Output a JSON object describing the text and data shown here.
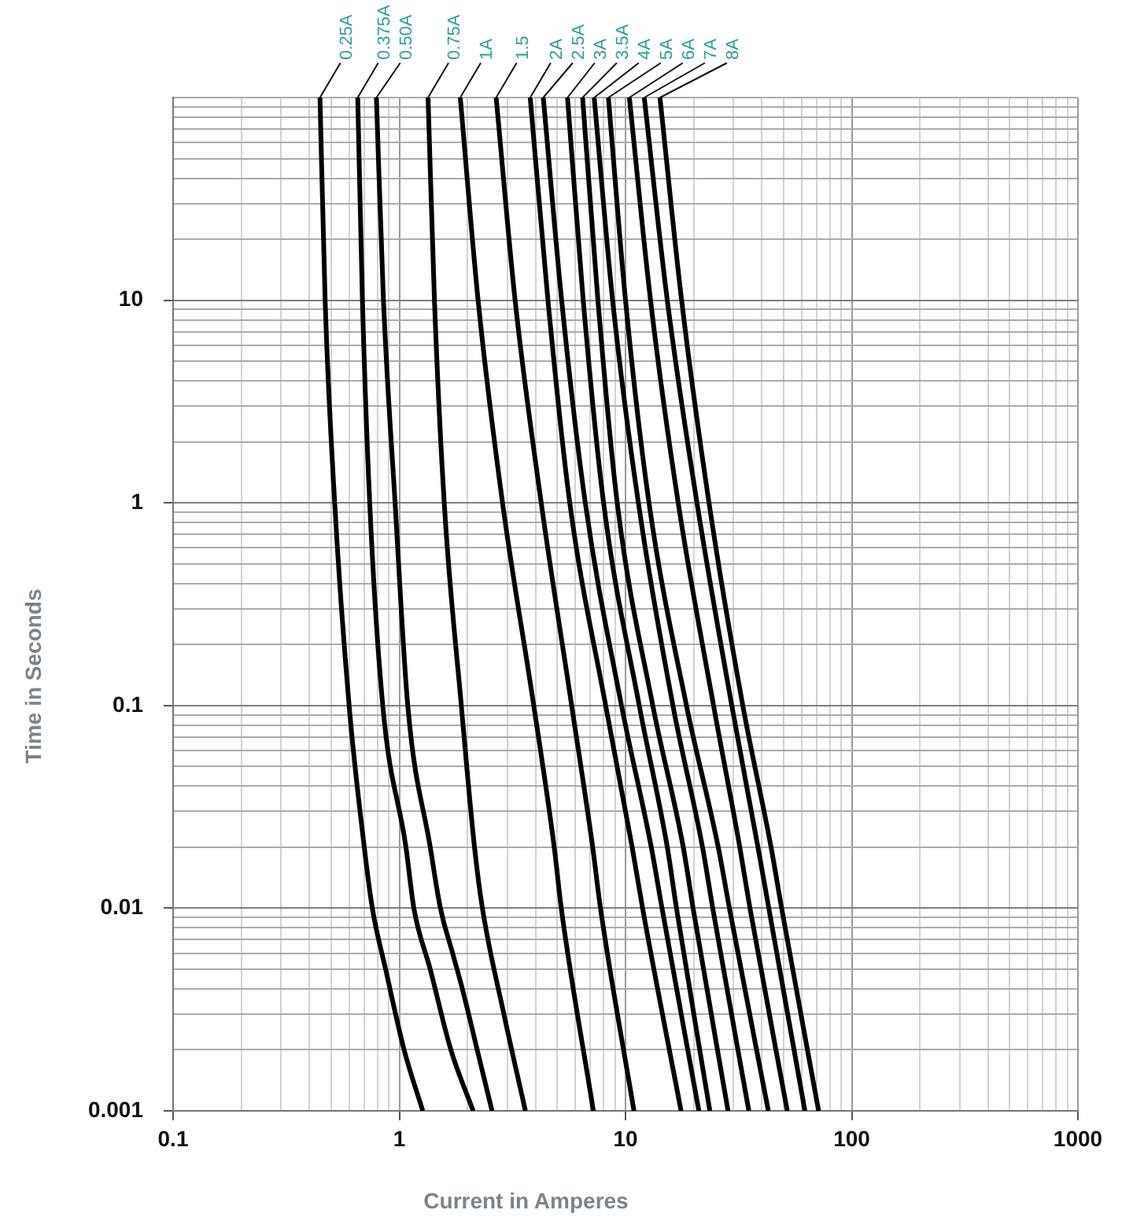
{
  "chart_data": {
    "type": "line",
    "xlabel": "Current in Amperes",
    "ylabel": "Time in Seconds",
    "log": "xy",
    "grid": true,
    "marker": "none",
    "line_style": "solid",
    "xlim": [
      0.1,
      1000
    ],
    "ylim": [
      0.001,
      100
    ],
    "xticks": [
      0.1,
      {
        "value": 0.2,
        "label": null
      },
      {
        "value": 0.3,
        "label": null
      },
      {
        "value": 0.4,
        "label": null
      },
      {
        "value": 0.5,
        "label": null
      },
      {
        "value": 0.6,
        "label": null
      },
      {
        "value": 0.7,
        "label": null
      },
      {
        "value": 0.8,
        "label": null
      },
      {
        "value": 0.9,
        "label": null
      },
      1,
      {
        "value": 2,
        "label": null
      },
      {
        "value": 3,
        "label": null
      },
      {
        "value": 4,
        "label": null
      },
      {
        "value": 5,
        "label": null
      },
      {
        "value": 6,
        "label": null
      },
      {
        "value": 7,
        "label": null
      },
      {
        "value": 8,
        "label": null
      },
      {
        "value": 9,
        "label": null
      },
      10,
      {
        "value": 20,
        "label": null
      },
      {
        "value": 30,
        "label": null
      },
      {
        "value": 40,
        "label": null
      },
      {
        "value": 50,
        "label": null
      },
      {
        "value": 60,
        "label": null
      },
      {
        "value": 70,
        "label": null
      },
      {
        "value": 80,
        "label": null
      },
      {
        "value": 90,
        "label": null
      },
      100,
      {
        "value": 200,
        "label": null
      },
      {
        "value": 300,
        "label": null
      },
      {
        "value": 400,
        "label": null
      },
      {
        "value": 500,
        "label": null
      },
      {
        "value": 600,
        "label": null
      },
      {
        "value": 700,
        "label": null
      },
      {
        "value": 800,
        "label": null
      },
      {
        "value": 900,
        "label": null
      },
      1000
    ],
    "yticks": [
      0.001,
      {
        "value": 0.002,
        "label": null
      },
      {
        "value": 0.003,
        "label": null
      },
      {
        "value": 0.004,
        "label": null
      },
      {
        "value": 0.005,
        "label": null
      },
      {
        "value": 0.006,
        "label": null
      },
      {
        "value": 0.007,
        "label": null
      },
      {
        "value": 0.008,
        "label": null
      },
      {
        "value": 0.009,
        "label": null
      },
      0.01,
      {
        "value": 0.02,
        "label": null
      },
      {
        "value": 0.03,
        "label": null
      },
      {
        "value": 0.04,
        "label": null
      },
      {
        "value": 0.05,
        "label": null
      },
      {
        "value": 0.06,
        "label": null
      },
      {
        "value": 0.07,
        "label": null
      },
      {
        "value": 0.08,
        "label": null
      },
      {
        "value": 0.09,
        "label": null
      },
      0.1,
      {
        "value": 0.2,
        "label": null
      },
      {
        "value": 0.3,
        "label": null
      },
      {
        "value": 0.4,
        "label": null
      },
      {
        "value": 0.5,
        "label": null
      },
      {
        "value": 0.6,
        "label": null
      },
      {
        "value": 0.7,
        "label": null
      },
      {
        "value": 0.8,
        "label": null
      },
      {
        "value": 0.9,
        "label": null
      },
      1,
      {
        "value": 2,
        "label": null
      },
      {
        "value": 3,
        "label": null
      },
      {
        "value": 4,
        "label": null
      },
      {
        "value": 5,
        "label": null
      },
      {
        "value": 6,
        "label": null
      },
      {
        "value": 7,
        "label": null
      },
      {
        "value": 8,
        "label": null
      },
      {
        "value": 9,
        "label": null
      },
      10,
      {
        "value": 20,
        "label": null
      },
      {
        "value": 30,
        "label": null
      },
      {
        "value": 40,
        "label": null
      },
      {
        "value": 50,
        "label": null
      },
      {
        "value": 60,
        "label": null
      },
      {
        "value": 70,
        "label": null
      },
      {
        "value": 80,
        "label": null
      },
      {
        "value": 90,
        "label": null
      },
      {
        "value": 100,
        "label": null
      }
    ],
    "series": [
      {
        "name": "0.25A",
        "color": "#000000",
        "x": [
          0.446,
          0.47,
          0.518,
          0.6,
          0.7,
          0.76,
          0.87,
          1.05,
          1.27
        ],
        "values": [
          100,
          10,
          1,
          0.1,
          0.02,
          0.01,
          0.005,
          0.002,
          0.001
        ]
      },
      {
        "name": "0.375A",
        "color": "#000000",
        "x": [
          0.655,
          0.687,
          0.74,
          0.845,
          1.07,
          1.16,
          1.37,
          1.69,
          2.12
        ],
        "values": [
          100,
          10,
          1,
          0.1,
          0.02,
          0.01,
          0.005,
          0.002,
          0.001
        ]
      },
      {
        "name": "0.50A",
        "color": "#000000",
        "x": [
          0.792,
          0.851,
          0.958,
          1.09,
          1.37,
          1.52,
          1.72,
          1.9,
          2.21,
          2.57
        ],
        "values": [
          100,
          10,
          1,
          0.1,
          0.02,
          0.01,
          0.006,
          0.004,
          0.002,
          0.001
        ]
      },
      {
        "name": "0.75A",
        "color": "#000000",
        "x": [
          1.34,
          1.43,
          1.58,
          1.88,
          2.15,
          2.33,
          2.9,
          3.61
        ],
        "values": [
          100,
          10,
          1,
          0.1,
          0.02,
          0.01,
          0.003,
          0.001
        ]
      },
      {
        "name": "1A",
        "color": "#000000",
        "x": [
          1.86,
          2.23,
          2.86,
          3.93,
          4.84,
          5.2,
          7.21
        ],
        "values": [
          100,
          10,
          1,
          0.1,
          0.02,
          0.01,
          0.001
        ]
      },
      {
        "name": "1.5",
        "color": "#000000",
        "x": [
          2.68,
          3.25,
          4.24,
          5.78,
          7.16,
          7.75,
          10.9
        ],
        "values": [
          100,
          10,
          1,
          0.1,
          0.02,
          0.01,
          0.001
        ]
      },
      {
        "name": "2A",
        "color": "#000000",
        "x": [
          3.79,
          4.54,
          5.67,
          8.17,
          10.7,
          11.9,
          17.6
        ],
        "values": [
          100,
          10,
          1,
          0.1,
          0.02,
          0.01,
          0.001
        ]
      },
      {
        "name": "2.5A",
        "color": "#000000",
        "x": [
          4.33,
          5.22,
          6.64,
          9.6,
          13.0,
          14.5,
          21.1
        ],
        "values": [
          100,
          10,
          1,
          0.1,
          0.02,
          0.01,
          0.001
        ]
      },
      {
        "name": "3A",
        "color": "#000000",
        "x": [
          5.54,
          6.5,
          8.0,
          11.5,
          15.3,
          16.8,
          23.6
        ],
        "values": [
          100,
          10,
          1,
          0.1,
          0.02,
          0.01,
          0.001
        ]
      },
      {
        "name": "3.5A",
        "color": "#000000",
        "x": [
          6.46,
          7.55,
          9.19,
          13.2,
          18.0,
          19.9,
          28.4
        ],
        "values": [
          100,
          10,
          1,
          0.1,
          0.02,
          0.01,
          0.001
        ]
      },
      {
        "name": "4A",
        "color": "#000000",
        "x": [
          7.27,
          8.77,
          11.4,
          16.2,
          21.9,
          24.3,
          35.1
        ],
        "values": [
          100,
          10,
          1,
          0.1,
          0.02,
          0.01,
          0.001
        ]
      },
      {
        "name": "5A",
        "color": "#000000",
        "x": [
          8.4,
          10.0,
          12.7,
          18.6,
          25.7,
          28.8,
          42.8
        ],
        "values": [
          100,
          10,
          1,
          0.1,
          0.02,
          0.01,
          0.001
        ]
      },
      {
        "name": "6A",
        "color": "#000000",
        "x": [
          10.4,
          12.9,
          17.1,
          24.5,
          32,
          35.5,
          51.9
        ],
        "values": [
          100,
          10,
          1,
          0.1,
          0.02,
          0.01,
          0.001
        ]
      },
      {
        "name": "7A",
        "color": "#000000",
        "x": [
          12.1,
          15.3,
          20.7,
          29.5,
          38.5,
          43,
          62.1
        ],
        "values": [
          100,
          10,
          1,
          0.1,
          0.02,
          0.01,
          0.001
        ]
      },
      {
        "name": "8A",
        "color": "#000000",
        "x": [
          14.2,
          17.7,
          23.4,
          33,
          44,
          49,
          71.4
        ],
        "values": [
          100,
          10,
          1,
          0.1,
          0.02,
          0.01,
          0.001
        ]
      }
    ]
  }
}
